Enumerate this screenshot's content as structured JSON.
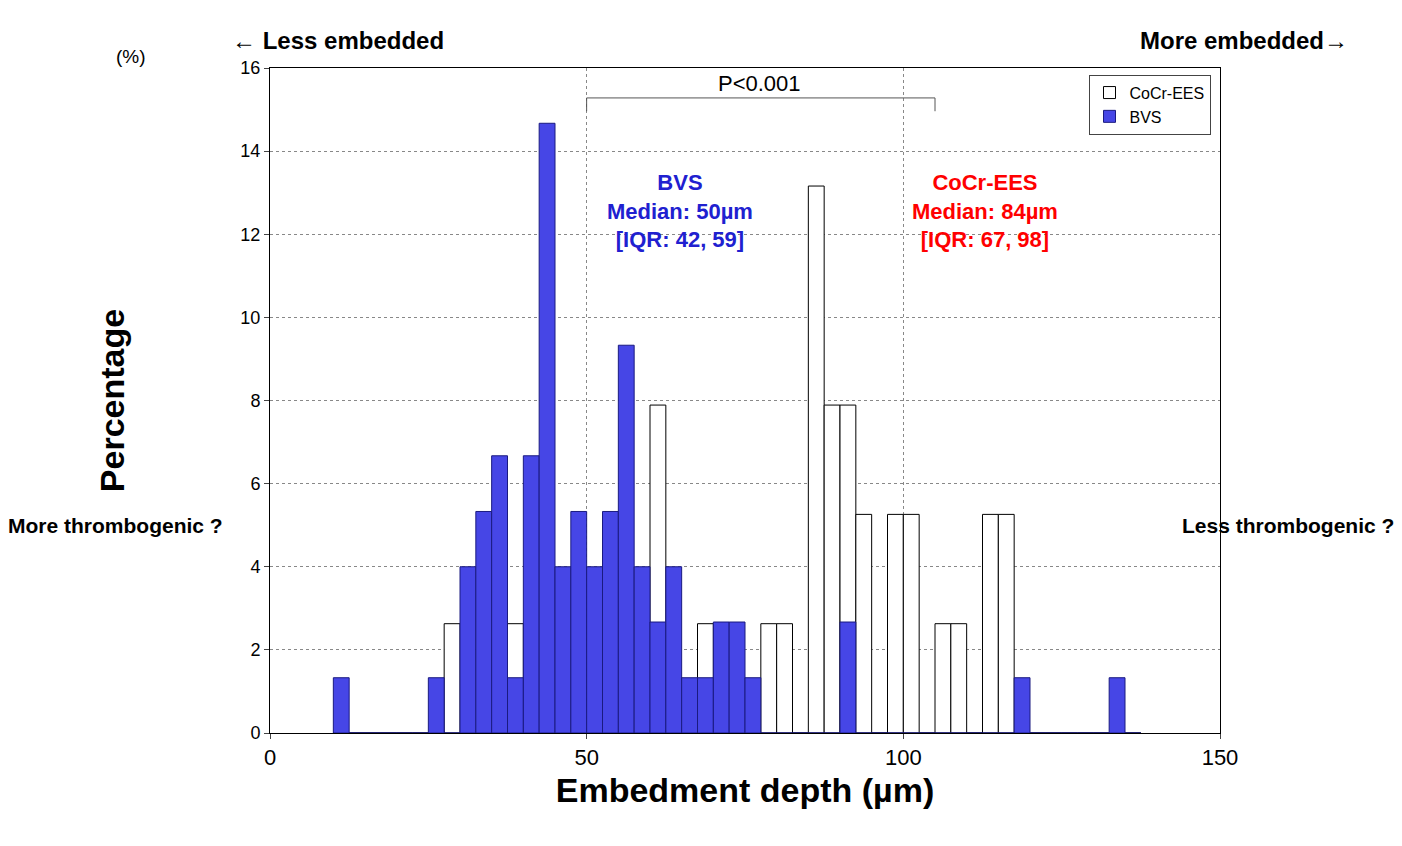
{
  "chart_data": {
    "type": "histogram",
    "x_label": "Embedment depth (µm)",
    "y_label": "Percentage",
    "bins": [
      10,
      12.5,
      15,
      17.5,
      20,
      22.5,
      25,
      27.5,
      30,
      32.5,
      35,
      37.5,
      40,
      42.5,
      45,
      47.5,
      50,
      52.5,
      55,
      57.5,
      60,
      62.5,
      65,
      67.5,
      70,
      72.5,
      75,
      77.5,
      80,
      82.5,
      85,
      87.5,
      90,
      92.5,
      95,
      97.5,
      100,
      102.5,
      105,
      107.5,
      110,
      112.5,
      115,
      117.5,
      120,
      122.5,
      125,
      127.5,
      130,
      132.5,
      135,
      137.5
    ],
    "series": [
      {
        "name": "CoCr-EES",
        "color": "#ffffff",
        "values": [
          0,
          0,
          0,
          0,
          0,
          0,
          0,
          2.63,
          0,
          0,
          0,
          2.63,
          0,
          0,
          0,
          0,
          0,
          0,
          0,
          0,
          7.89,
          0,
          0,
          2.63,
          0,
          0,
          0,
          2.63,
          2.63,
          0,
          13.16,
          7.89,
          7.89,
          5.26,
          0,
          5.26,
          5.26,
          0,
          2.63,
          2.63,
          0,
          5.26,
          5.26,
          0,
          0,
          0,
          0,
          0,
          0,
          0,
          0
        ]
      },
      {
        "name": "BVS",
        "color": "#4646e6",
        "values": [
          1.33,
          0,
          0,
          0,
          0,
          0,
          1.33,
          0,
          4,
          5.33,
          6.67,
          1.33,
          6.67,
          14.67,
          4,
          5.33,
          4,
          5.33,
          9.33,
          4,
          2.67,
          4,
          1.33,
          1.33,
          2.67,
          2.67,
          1.33,
          0,
          0,
          0,
          0,
          0,
          2.67,
          0,
          0,
          0,
          0,
          0,
          0,
          0,
          0,
          0,
          0,
          1.33,
          0,
          0,
          0,
          0,
          0,
          1.33,
          0
        ]
      }
    ],
    "xlim": [
      0,
      150
    ],
    "xticks": [
      0,
      50,
      100,
      150
    ],
    "ylim": [
      0,
      16
    ],
    "yticks": [
      0,
      2,
      4,
      6,
      8,
      10,
      12,
      14,
      16
    ],
    "grid": true,
    "legend": "top right",
    "stacked": false,
    "annotations": [
      {
        "text": "← Less embedded"
      },
      {
        "text": "More embedded→"
      },
      {
        "text": "(%)"
      },
      {
        "text": "P<0.001"
      },
      {
        "text": "BVS\nMedian: 50µm\n[IQR: 42, 59]",
        "color": "#2020d0"
      },
      {
        "text": "CoCr-EES\nMedian: 84µm\n[IQR: 67, 98]",
        "color": "#ff0000"
      },
      {
        "text": "More thrombogenic ?"
      },
      {
        "text": "Less thrombogenic ?"
      }
    ]
  }
}
